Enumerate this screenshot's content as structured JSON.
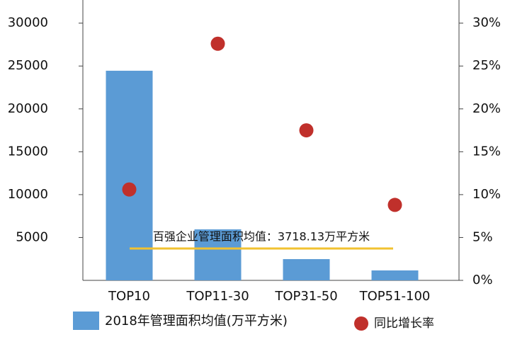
{
  "chart_data": {
    "type": "combo",
    "categories": [
      "TOP10",
      "TOP11-30",
      "TOP31-50",
      "TOP51-100"
    ],
    "series": [
      {
        "name": "2018年管理面积均值(万平方米)",
        "type": "bar",
        "color": "#5b9bd5",
        "values": [
          24450,
          5950,
          2480,
          1160
        ]
      },
      {
        "name": "同比增长率",
        "type": "scatter",
        "axis": "y2",
        "color": "#c0302b",
        "values": [
          10.6,
          27.6,
          17.5,
          8.8
        ]
      }
    ],
    "ylim": [
      0,
      32700
    ],
    "yticks": [
      5000,
      10000,
      15000,
      20000,
      25000,
      30000
    ],
    "y2lim": [
      0,
      32.7
    ],
    "y2ticks": [
      {
        "value": 0,
        "label": "0%"
      },
      {
        "value": 5,
        "label": "5%"
      },
      {
        "value": 10,
        "label": "10%"
      },
      {
        "value": 15,
        "label": "15%"
      },
      {
        "value": 20,
        "label": "20%"
      },
      {
        "value": 25,
        "label": "25%"
      },
      {
        "value": 30,
        "label": "30%"
      }
    ],
    "reference_line": {
      "value": 3718.13,
      "label": "百强企业管理面积均值：3718.13万平方米",
      "color": "#f2c230"
    }
  }
}
